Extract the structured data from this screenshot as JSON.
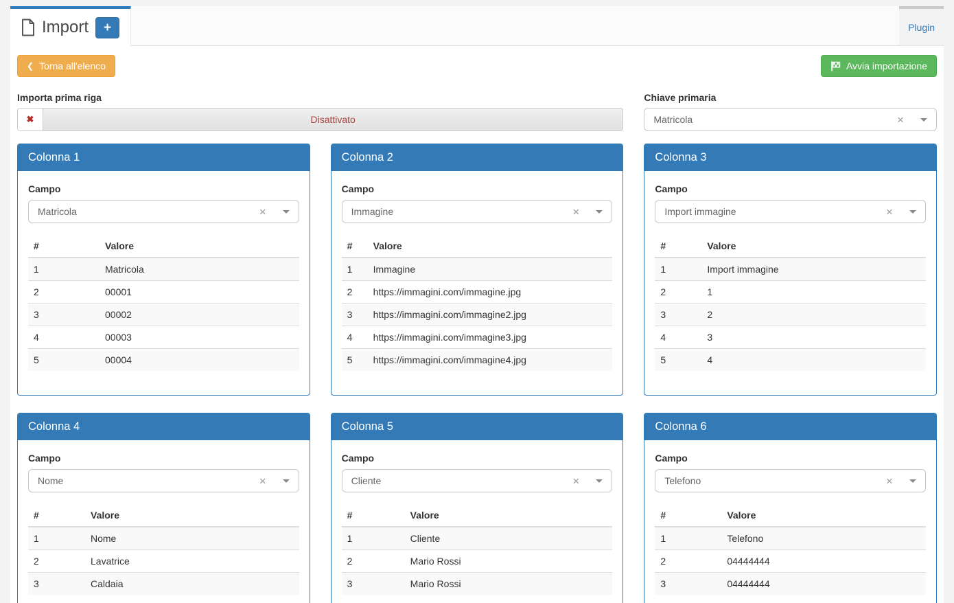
{
  "header": {
    "title": "Import",
    "add_button": "+",
    "plugin_tab": "Plugin"
  },
  "toolbar": {
    "back": "Torna all'elenco",
    "start": "Avvia importazione"
  },
  "controls": {
    "first_row_label": "Importa prima riga",
    "first_row_state": "Disattivato",
    "primary_key_label": "Chiave primaria",
    "primary_key_value": "Matricola"
  },
  "labels": {
    "field": "Campo",
    "num": "#",
    "value": "Valore"
  },
  "icons": {
    "chevron_left": "❮",
    "cross": "✖",
    "clear": "×",
    "file_icon": "file-icon",
    "flag_icon": "flag-checkered-icon",
    "caret_icon": "chevron-down-icon"
  },
  "colors": {
    "accent_blue": "#337ab7",
    "warning_orange": "#f0ad4e",
    "success_green": "#5cb85c",
    "danger_red": "#a94442"
  },
  "panels": [
    {
      "title": "Colonna 1",
      "field": "Matricola",
      "rows": [
        {
          "num": "1",
          "value": "Matricola"
        },
        {
          "num": "2",
          "value": "00001"
        },
        {
          "num": "3",
          "value": "00002"
        },
        {
          "num": "4",
          "value": "00003"
        },
        {
          "num": "5",
          "value": "00004"
        }
      ]
    },
    {
      "title": "Colonna 2",
      "field": "Immagine",
      "rows": [
        {
          "num": "1",
          "value": "Immagine"
        },
        {
          "num": "2",
          "value": "https://immagini.com/immagine.jpg"
        },
        {
          "num": "3",
          "value": "https://immagini.com/immagine2.jpg"
        },
        {
          "num": "4",
          "value": "https://immagini.com/immagine3.jpg"
        },
        {
          "num": "5",
          "value": "https://immagini.com/immagine4.jpg"
        }
      ]
    },
    {
      "title": "Colonna 3",
      "field": "Import immagine",
      "rows": [
        {
          "num": "1",
          "value": "Import immagine"
        },
        {
          "num": "2",
          "value": "1"
        },
        {
          "num": "3",
          "value": "2"
        },
        {
          "num": "4",
          "value": "3"
        },
        {
          "num": "5",
          "value": "4"
        }
      ]
    },
    {
      "title": "Colonna 4",
      "field": "Nome",
      "rows": [
        {
          "num": "1",
          "value": "Nome"
        },
        {
          "num": "2",
          "value": "Lavatrice"
        },
        {
          "num": "3",
          "value": "Caldaia"
        }
      ]
    },
    {
      "title": "Colonna 5",
      "field": "Cliente",
      "rows": [
        {
          "num": "1",
          "value": "Cliente"
        },
        {
          "num": "2",
          "value": "Mario Rossi"
        },
        {
          "num": "3",
          "value": "Mario Rossi"
        }
      ]
    },
    {
      "title": "Colonna 6",
      "field": "Telefono",
      "rows": [
        {
          "num": "1",
          "value": "Telefono"
        },
        {
          "num": "2",
          "value": "04444444"
        },
        {
          "num": "3",
          "value": "04444444"
        }
      ]
    }
  ]
}
